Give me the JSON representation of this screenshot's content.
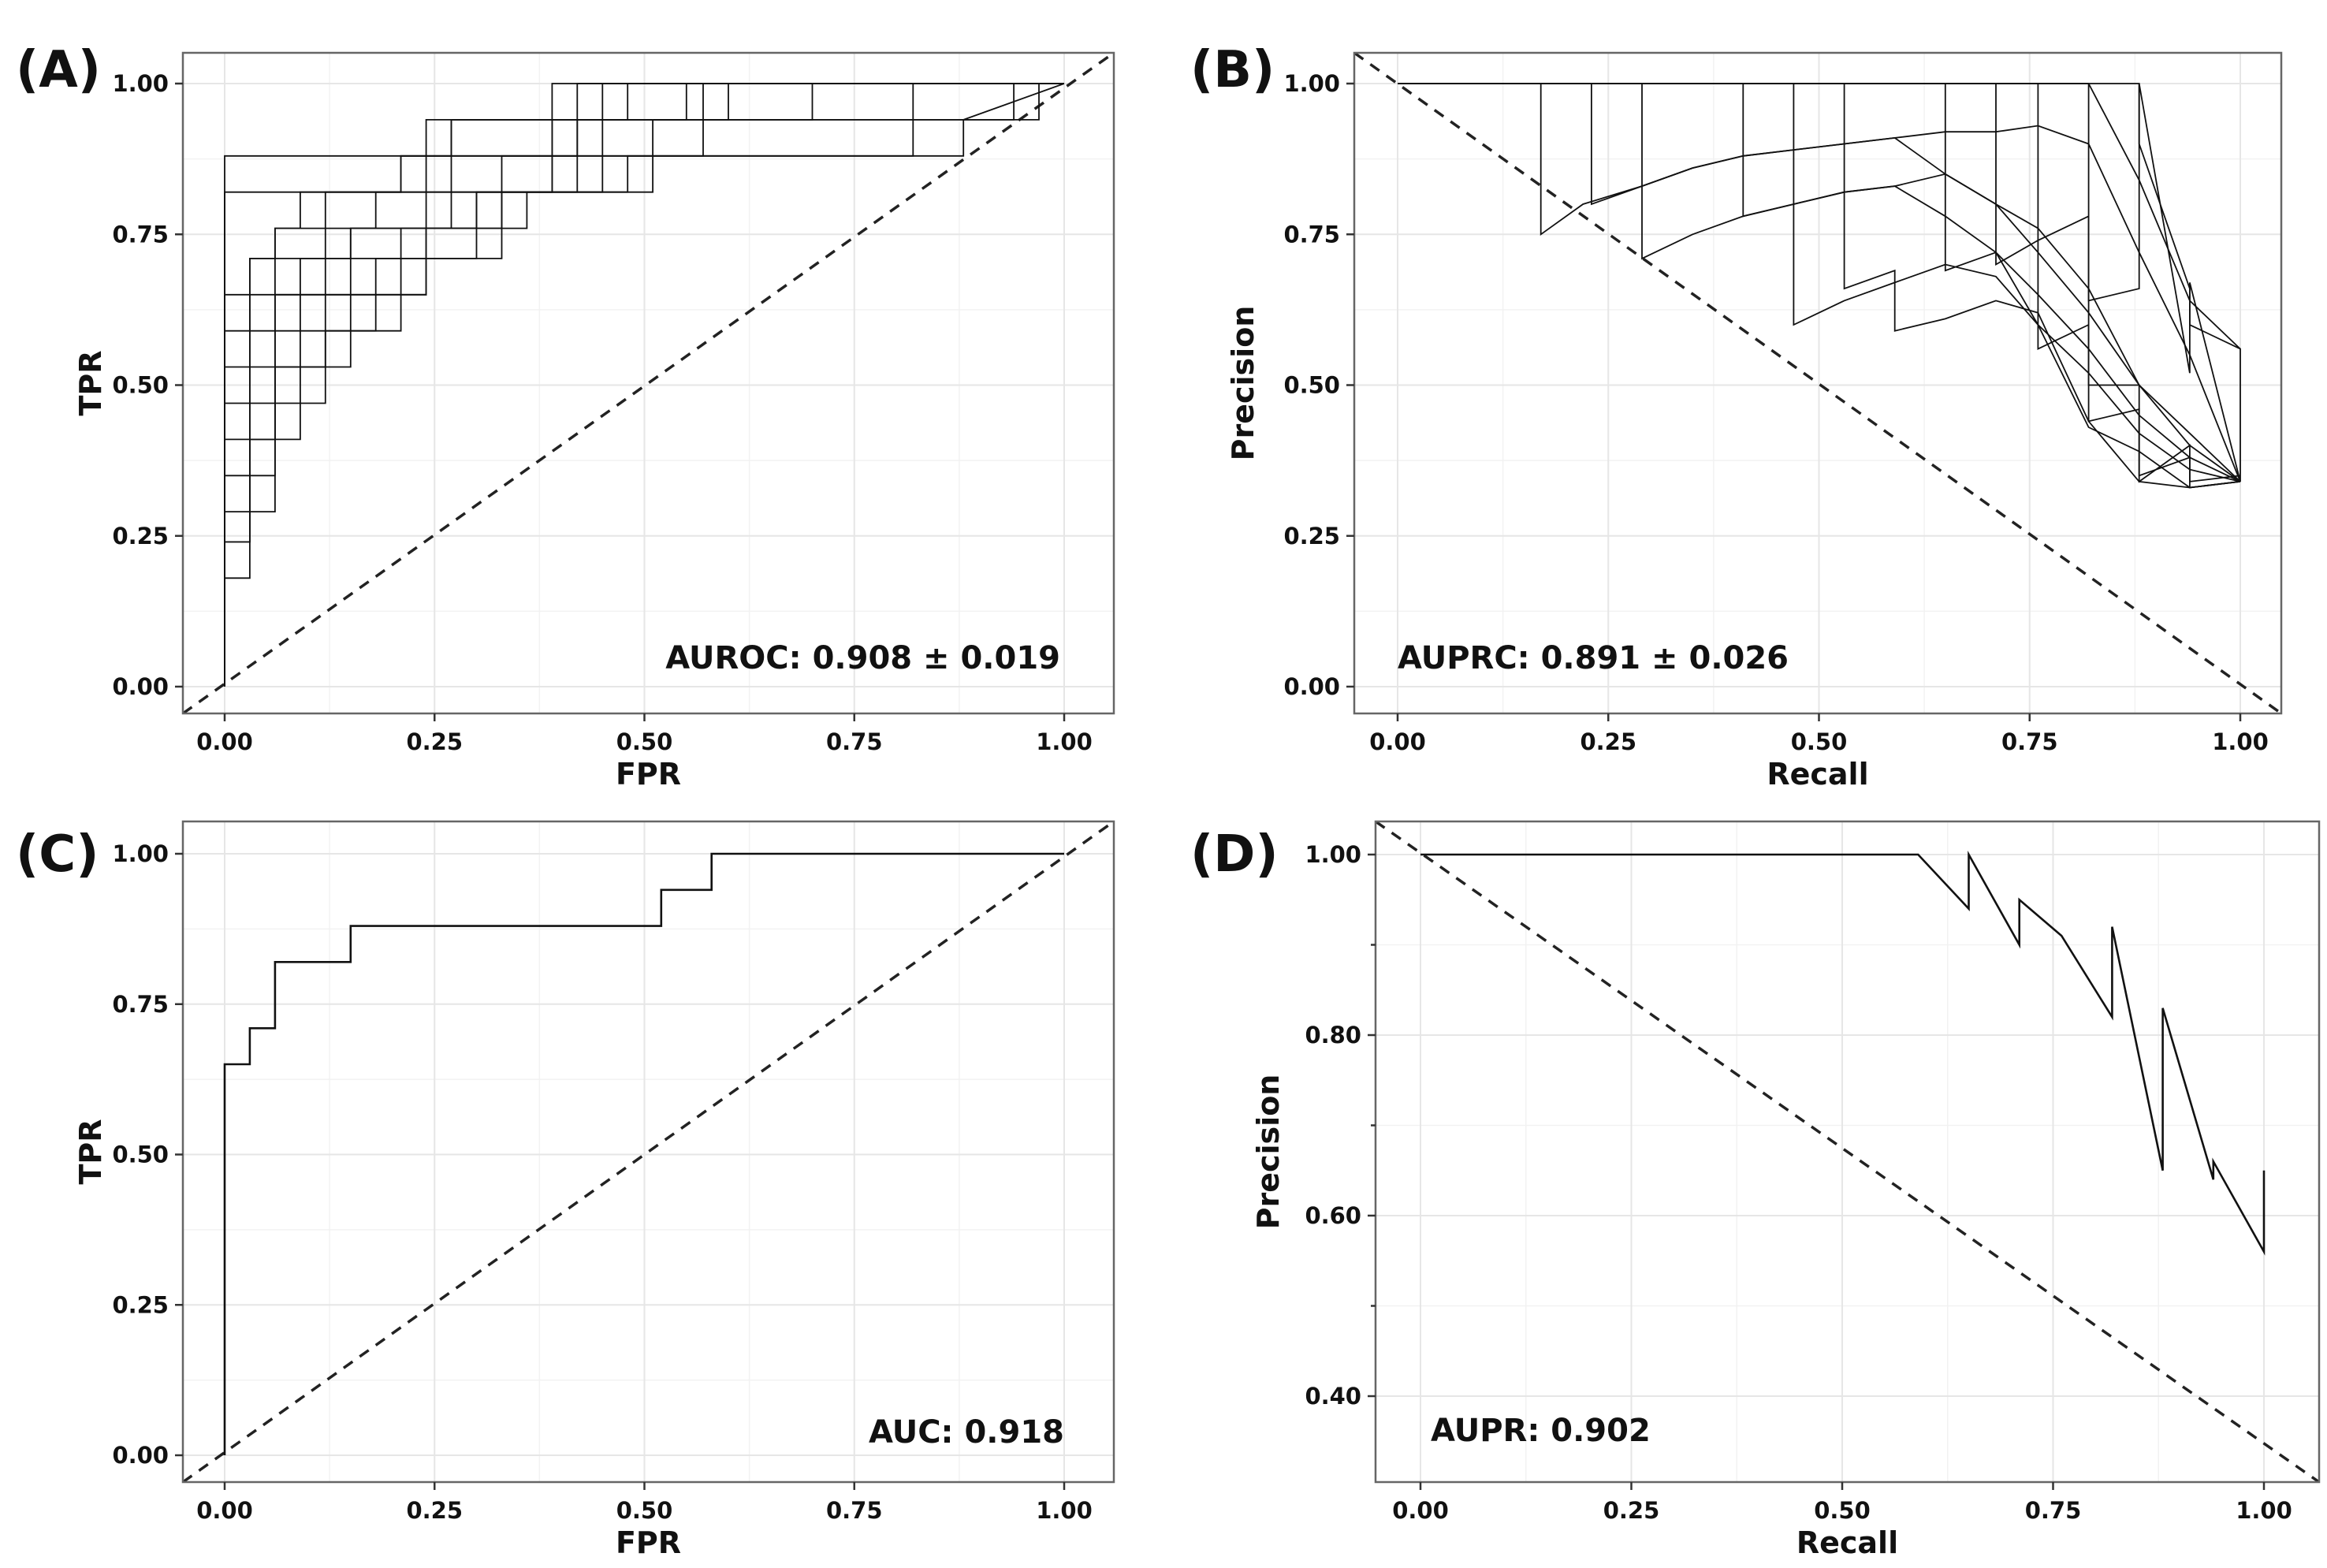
{
  "chart_data": [
    {
      "panel": "(A)",
      "type": "line",
      "xlabel": "FPR",
      "ylabel": "TPR",
      "xlim": [
        0,
        1
      ],
      "ylim": [
        0,
        1
      ],
      "xticks": [
        "0.00",
        "0.25",
        "0.50",
        "0.75",
        "1.00"
      ],
      "yticks": [
        "0.00",
        "0.25",
        "0.50",
        "0.75",
        "1.00"
      ],
      "grid": true,
      "annotation": "AUROC: 0.908 ± 0.019",
      "reference_line": "dashed diagonal",
      "series": [
        {
          "x": [
            0,
            0,
            0.03,
            0.03,
            0.06,
            0.06,
            0.12,
            0.12,
            0.18,
            0.18,
            0.24,
            0.24,
            0.39,
            0.39,
            1.0
          ],
          "y": [
            0,
            0.88,
            0.88,
            0.88,
            0.88,
            0.88,
            0.88,
            0.88,
            0.88,
            0.88,
            0.88,
            0.94,
            0.94,
            1.0,
            1.0
          ]
        },
        {
          "x": [
            0,
            0,
            0.03,
            0.03,
            0.06,
            0.06,
            0.12,
            0.12,
            0.24,
            0.24,
            0.42,
            0.42,
            1.0
          ],
          "y": [
            0,
            0.82,
            0.82,
            0.82,
            0.82,
            0.82,
            0.82,
            0.82,
            0.82,
            0.88,
            0.88,
            1.0,
            1.0
          ]
        },
        {
          "x": [
            0,
            0,
            0.03,
            0.03,
            0.06,
            0.06,
            0.09,
            0.09,
            0.15,
            0.15,
            0.21,
            0.21,
            0.27,
            0.27,
            0.45,
            0.45,
            1.0
          ],
          "y": [
            0,
            0.65,
            0.65,
            0.71,
            0.71,
            0.76,
            0.76,
            0.82,
            0.82,
            0.82,
            0.82,
            0.88,
            0.88,
            0.94,
            0.94,
            1.0,
            1.0
          ]
        },
        {
          "x": [
            0,
            0,
            0.03,
            0.03,
            0.06,
            0.06,
            0.12,
            0.12,
            0.21,
            0.21,
            0.39,
            0.39,
            0.48,
            0.48,
            1.0
          ],
          "y": [
            0,
            0.59,
            0.59,
            0.71,
            0.71,
            0.76,
            0.76,
            0.82,
            0.82,
            0.88,
            0.88,
            0.94,
            0.94,
            1.0,
            1.0
          ]
        },
        {
          "x": [
            0,
            0,
            0.03,
            0.03,
            0.06,
            0.06,
            0.12,
            0.12,
            0.18,
            0.18,
            0.27,
            0.27,
            0.55,
            0.55,
            1.0
          ],
          "y": [
            0,
            0.53,
            0.53,
            0.65,
            0.65,
            0.71,
            0.71,
            0.76,
            0.76,
            0.82,
            0.82,
            0.94,
            0.94,
            1.0,
            1.0
          ]
        },
        {
          "x": [
            0,
            0,
            0.03,
            0.03,
            0.06,
            0.06,
            0.09,
            0.09,
            0.15,
            0.15,
            0.24,
            0.24,
            0.39,
            0.39,
            0.6,
            0.6,
            1.0
          ],
          "y": [
            0,
            0.47,
            0.47,
            0.59,
            0.59,
            0.65,
            0.65,
            0.71,
            0.71,
            0.76,
            0.76,
            0.82,
            0.82,
            0.94,
            0.94,
            1.0,
            1.0
          ]
        },
        {
          "x": [
            0,
            0,
            0.03,
            0.03,
            0.06,
            0.06,
            0.12,
            0.12,
            0.21,
            0.21,
            0.3,
            0.3,
            0.45,
            0.45,
            0.7,
            0.7,
            1.0
          ],
          "y": [
            0,
            0.41,
            0.41,
            0.53,
            0.53,
            0.65,
            0.65,
            0.71,
            0.71,
            0.76,
            0.76,
            0.82,
            0.82,
            0.94,
            0.94,
            1.0,
            1.0
          ]
        },
        {
          "x": [
            0,
            0,
            0.03,
            0.03,
            0.06,
            0.06,
            0.09,
            0.09,
            0.15,
            0.15,
            0.27,
            0.27,
            0.39,
            0.39,
            0.82,
            0.82,
            1.0
          ],
          "y": [
            0,
            0.35,
            0.35,
            0.47,
            0.47,
            0.59,
            0.59,
            0.65,
            0.65,
            0.76,
            0.76,
            0.82,
            0.82,
            0.88,
            0.88,
            1.0,
            1.0
          ]
        },
        {
          "x": [
            0,
            0,
            0.03,
            0.03,
            0.06,
            0.06,
            0.12,
            0.12,
            0.24,
            0.24,
            0.36,
            0.36,
            0.48,
            0.48,
            0.88,
            0.88,
            1.0
          ],
          "y": [
            0,
            0.29,
            0.29,
            0.41,
            0.41,
            0.53,
            0.53,
            0.65,
            0.65,
            0.76,
            0.76,
            0.82,
            0.82,
            0.88,
            0.88,
            0.94,
            1.0
          ]
        },
        {
          "x": [
            0,
            0,
            0.03,
            0.03,
            0.06,
            0.06,
            0.12,
            0.12,
            0.18,
            0.18,
            0.3,
            0.3,
            0.42,
            0.42,
            0.97,
            0.97,
            1.0
          ],
          "y": [
            0,
            0.24,
            0.24,
            0.35,
            0.35,
            0.47,
            0.47,
            0.59,
            0.59,
            0.71,
            0.71,
            0.82,
            0.82,
            0.94,
            0.94,
            1.0,
            1.0
          ]
        },
        {
          "x": [
            0,
            0,
            0.03,
            0.03,
            0.06,
            0.06,
            0.09,
            0.09,
            0.21,
            0.21,
            0.33,
            0.33,
            0.51,
            0.51,
            0.94,
            0.94,
            1.0
          ],
          "y": [
            0,
            0.18,
            0.18,
            0.29,
            0.29,
            0.41,
            0.41,
            0.59,
            0.59,
            0.71,
            0.71,
            0.82,
            0.82,
            0.94,
            0.94,
            1.0,
            1.0
          ]
        },
        {
          "x": [
            0,
            0,
            0.03,
            0.03,
            0.06,
            0.06,
            0.15,
            0.15,
            0.24,
            0.24,
            0.33,
            0.33,
            0.57,
            0.57,
            1.0
          ],
          "y": [
            0,
            0.24,
            0.24,
            0.41,
            0.41,
            0.53,
            0.53,
            0.65,
            0.65,
            0.76,
            0.76,
            0.88,
            0.88,
            1.0,
            1.0
          ]
        }
      ]
    },
    {
      "panel": "(B)",
      "type": "line",
      "xlabel": "Recall",
      "ylabel": "Precision",
      "xlim": [
        0,
        1
      ],
      "ylim": [
        0,
        1
      ],
      "xticks": [
        "0.00",
        "0.25",
        "0.50",
        "0.75",
        "1.00"
      ],
      "yticks": [
        "0.00",
        "0.25",
        "0.50",
        "0.75",
        "1.00"
      ],
      "grid": true,
      "annotation": "AUPRC: 0.891 ± 0.026",
      "reference_line": "dashed diagonal",
      "series": [
        {
          "x": [
            0,
            0.11,
            0.17,
            0.17,
            0.22,
            0.29,
            0.35,
            0.41,
            0.47,
            0.53,
            0.59,
            0.65,
            0.71,
            0.76,
            0.82,
            0.88,
            0.94,
            1.0
          ],
          "y": [
            1.0,
            1.0,
            1.0,
            0.75,
            0.8,
            0.83,
            0.86,
            0.88,
            0.89,
            0.9,
            0.91,
            0.92,
            0.92,
            0.93,
            0.9,
            0.72,
            0.55,
            0.34
          ]
        },
        {
          "x": [
            0,
            0.17,
            0.23,
            0.23,
            0.29,
            0.35,
            0.41,
            0.47,
            0.53,
            0.59,
            0.65,
            0.71,
            0.76,
            0.82,
            0.88,
            0.94,
            1.0
          ],
          "y": [
            1.0,
            1.0,
            1.0,
            0.8,
            0.83,
            0.86,
            0.88,
            0.89,
            0.9,
            0.91,
            0.85,
            0.8,
            0.76,
            0.66,
            0.5,
            0.42,
            0.34
          ]
        },
        {
          "x": [
            0,
            0.23,
            0.29,
            0.29,
            0.35,
            0.41,
            0.47,
            0.53,
            0.59,
            0.65,
            0.71,
            0.76,
            0.82,
            0.88,
            0.94,
            1.0
          ],
          "y": [
            1.0,
            1.0,
            1.0,
            0.71,
            0.75,
            0.78,
            0.8,
            0.82,
            0.83,
            0.78,
            0.72,
            0.65,
            0.56,
            0.45,
            0.38,
            0.34
          ]
        },
        {
          "x": [
            0,
            0.35,
            0.41,
            0.41,
            0.47,
            0.53,
            0.59,
            0.65,
            0.71,
            0.76,
            0.82,
            0.88,
            0.94,
            1.0
          ],
          "y": [
            1.0,
            1.0,
            1.0,
            0.78,
            0.8,
            0.82,
            0.83,
            0.85,
            0.8,
            0.72,
            0.62,
            0.5,
            0.4,
            0.34
          ]
        },
        {
          "x": [
            0,
            0.47,
            0.47,
            0.53,
            0.59,
            0.65,
            0.71,
            0.76,
            0.82,
            0.88,
            0.94,
            1.0
          ],
          "y": [
            1.0,
            1.0,
            0.6,
            0.64,
            0.67,
            0.7,
            0.68,
            0.6,
            0.52,
            0.42,
            0.36,
            0.34
          ]
        },
        {
          "x": [
            0,
            0.53,
            0.53,
            0.59,
            0.59,
            0.65,
            0.71,
            0.76,
            0.82,
            0.88,
            0.94,
            1.0
          ],
          "y": [
            1.0,
            1.0,
            0.66,
            0.69,
            0.59,
            0.61,
            0.64,
            0.62,
            0.44,
            0.34,
            0.33,
            0.34
          ]
        },
        {
          "x": [
            0,
            0.59,
            0.65,
            0.65,
            0.71,
            0.76,
            0.82,
            0.88,
            0.94,
            1.0
          ],
          "y": [
            1.0,
            1.0,
            1.0,
            0.69,
            0.72,
            0.6,
            0.43,
            0.39,
            0.33,
            0.34
          ]
        },
        {
          "x": [
            0,
            0.65,
            0.71,
            0.71,
            0.76,
            0.82,
            0.82,
            0.88,
            0.88,
            0.94,
            0.94,
            1.0
          ],
          "y": [
            1.0,
            1.0,
            1.0,
            0.7,
            0.74,
            0.78,
            0.5,
            0.5,
            0.34,
            0.4,
            0.33,
            0.34
          ]
        },
        {
          "x": [
            0,
            0.76,
            0.76,
            0.82,
            0.82,
            0.88,
            0.88,
            0.94,
            0.94,
            1.0
          ],
          "y": [
            1.0,
            1.0,
            0.56,
            0.6,
            0.44,
            0.46,
            0.35,
            0.38,
            0.34,
            0.35
          ]
        },
        {
          "x": [
            0,
            0.82,
            0.82,
            0.88,
            0.88,
            0.94,
            0.94,
            1.0
          ],
          "y": [
            1.0,
            1.0,
            0.64,
            0.66,
            1.0,
            0.52,
            0.67,
            0.34
          ]
        },
        {
          "x": [
            0,
            0.88,
            0.88,
            0.94,
            0.94,
            1.0,
            1.0
          ],
          "y": [
            1.0,
            1.0,
            0.9,
            0.66,
            0.6,
            0.56,
            0.34
          ]
        },
        {
          "x": [
            0,
            0.76,
            0.82,
            0.88,
            0.94,
            1.0
          ],
          "y": [
            1.0,
            1.0,
            1.0,
            0.84,
            0.64,
            0.56
          ]
        }
      ]
    },
    {
      "panel": "(C)",
      "type": "line",
      "xlabel": "FPR",
      "ylabel": "TPR",
      "xlim": [
        0,
        1
      ],
      "ylim": [
        0,
        1
      ],
      "xticks": [
        "0.00",
        "0.25",
        "0.50",
        "0.75",
        "1.00"
      ],
      "yticks": [
        "0.00",
        "0.25",
        "0.50",
        "0.75",
        "1.00"
      ],
      "grid": true,
      "annotation": "AUC: 0.918",
      "reference_line": "dashed diagonal",
      "series": [
        {
          "x": [
            0,
            0,
            0.03,
            0.03,
            0.06,
            0.06,
            0.15,
            0.15,
            0.52,
            0.52,
            0.58,
            0.58,
            1.0
          ],
          "y": [
            0,
            0.65,
            0.65,
            0.71,
            0.71,
            0.82,
            0.82,
            0.88,
            0.88,
            0.94,
            0.94,
            1.0,
            1.0
          ]
        }
      ]
    },
    {
      "panel": "(D)",
      "type": "line",
      "xlabel": "Recall",
      "ylabel": "Precision",
      "xlim": [
        0,
        1
      ],
      "ylim": [
        0.32,
        1.03
      ],
      "xticks": [
        "0.00",
        "0.25",
        "0.50",
        "0.75",
        "1.00"
      ],
      "yticks": [
        "0.40",
        "0.60",
        "0.80",
        "1.00"
      ],
      "grid": true,
      "annotation": "AUPR: 0.902",
      "reference_line": "dashed diagonal",
      "series": [
        {
          "x": [
            0,
            0.59,
            0.65,
            0.65,
            0.71,
            0.71,
            0.76,
            0.82,
            0.82,
            0.88,
            0.88,
            0.94,
            0.94,
            1.0,
            1.0
          ],
          "y": [
            1.0,
            1.0,
            0.94,
            1.0,
            0.9,
            0.95,
            0.91,
            0.82,
            0.92,
            0.65,
            0.83,
            0.64,
            0.66,
            0.56,
            0.65
          ]
        }
      ]
    }
  ]
}
